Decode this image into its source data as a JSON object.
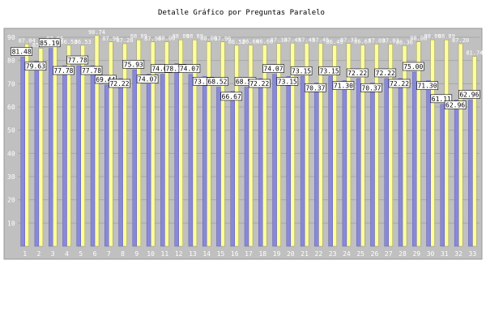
{
  "chart_data": {
    "type": "bar",
    "title": "Detalle Gráfico por Preguntas Paralelo",
    "xlabel": "",
    "ylabel": "",
    "ylim": [
      0,
      90
    ],
    "yticks": [
      10,
      20,
      30,
      40,
      50,
      60,
      70,
      80,
      90
    ],
    "grid": true,
    "categories": [
      "1",
      "2",
      "3",
      "4",
      "5",
      "6",
      "7",
      "8",
      "9",
      "10",
      "11",
      "12",
      "13",
      "14",
      "15",
      "16",
      "17",
      "18",
      "19",
      "20",
      "21",
      "22",
      "23",
      "24",
      "25",
      "26",
      "27",
      "28",
      "29",
      "30",
      "31",
      "32",
      "33"
    ],
    "series": [
      {
        "color": "#8888dd",
        "labels_shown": true,
        "values": [
          81.48,
          79.63,
          85.19,
          77.78,
          77.78,
          77.78,
          69.44,
          72.22,
          75.93,
          74.07,
          74.07,
          78.7,
          74.07,
          73.15,
          68.52,
          66.67,
          68.52,
          72.22,
          74.07,
          73.15,
          73.15,
          70.37,
          73.15,
          71.3,
          72.22,
          70.37,
          72.22,
          72.22,
          75.0,
          71.3,
          61.11,
          62.96,
          62.96
        ]
      },
      {
        "color": "#ffff99",
        "labels_shown": false,
        "values": [
          87.04,
          85.19,
          87.96,
          86.53,
          86.53,
          90.74,
          87.96,
          87.2,
          88.89,
          87.96,
          88.0,
          88.89,
          88.89,
          88.0,
          87.96,
          86.52,
          86.66,
          86.66,
          87.33,
          87.45,
          87.45,
          87.45,
          86.49,
          87.37,
          86.67,
          87.03,
          87.03,
          86.36,
          88.0,
          88.89,
          88.89,
          87.2,
          81.74
        ]
      }
    ]
  }
}
